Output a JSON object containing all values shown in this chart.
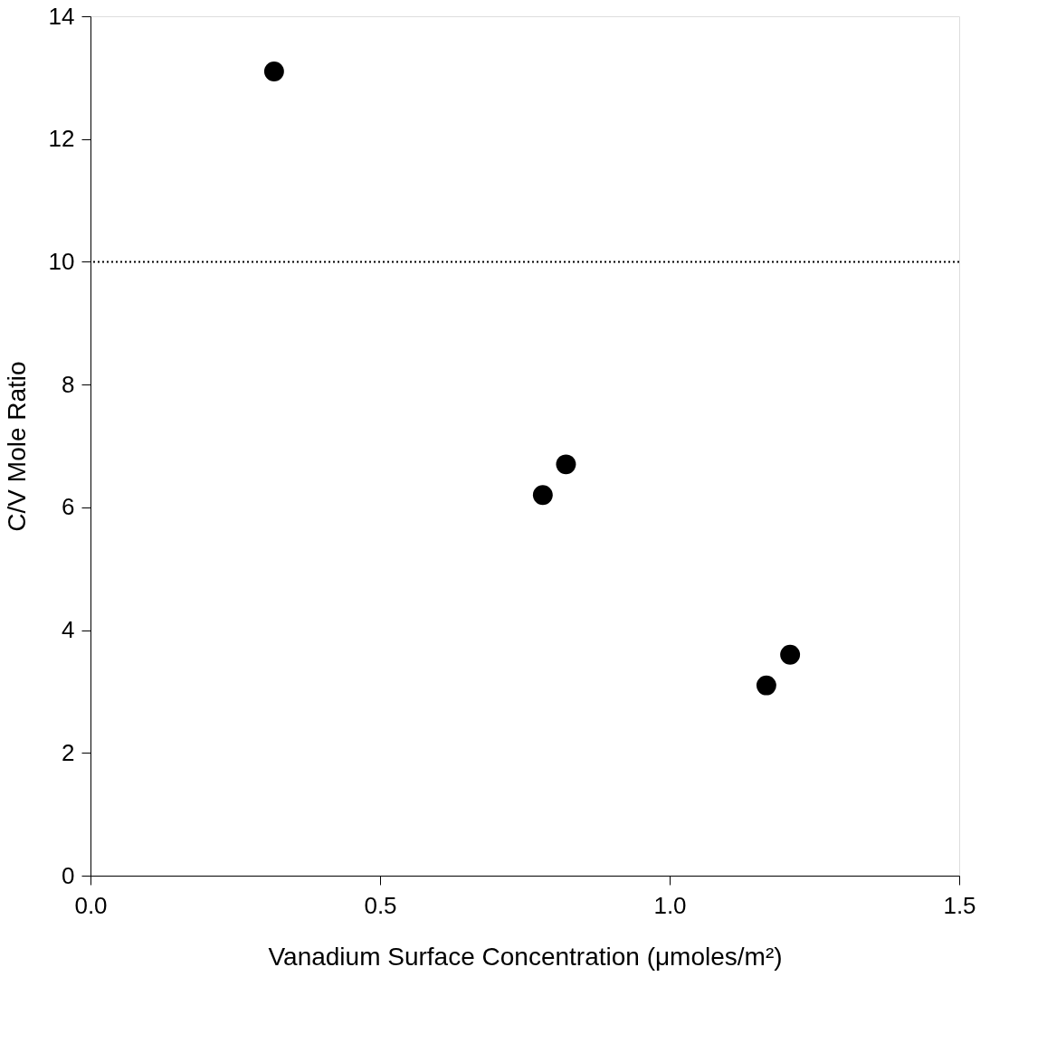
{
  "chart_data": {
    "type": "scatter",
    "xlabel": "Vanadium Surface Concentration (μmoles/m²)",
    "ylabel": "C/V Mole Ratio",
    "x": [
      0.317,
      0.781,
      0.821,
      1.167,
      1.208
    ],
    "series": [
      {
        "color": "#000000",
        "values": [
          13.1,
          6.2,
          6.7,
          3.1,
          3.6
        ]
      }
    ],
    "xlim": [
      0,
      1.5
    ],
    "xticks": [
      {
        "value": 0,
        "label": "0.0"
      },
      0.5,
      {
        "value": 1,
        "label": "1.0"
      },
      1.5
    ],
    "ylim": [
      0,
      14
    ],
    "yticks": [
      0,
      2,
      4,
      6,
      8,
      10,
      12,
      14
    ],
    "ref_lines": [
      {
        "axis": "y",
        "value": 10,
        "color": "#000000",
        "line_style": "dotted"
      }
    ],
    "marker": "circle",
    "grid": false
  }
}
